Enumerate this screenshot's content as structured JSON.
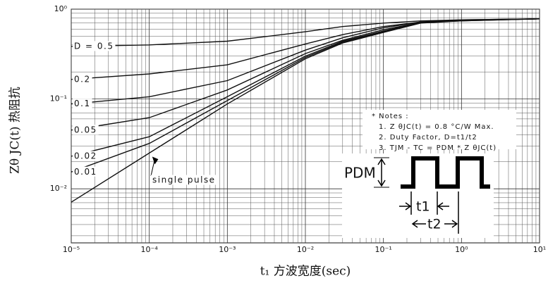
{
  "chart_data": {
    "type": "line",
    "y_label": "Zθ JC(t) 热阻抗",
    "x_label": "t₁ 方波宽度(sec)",
    "log_x": true,
    "log_y": true,
    "grid": true,
    "x": [
      1e-05,
      0.0001,
      0.001,
      0.01,
      0.03,
      0.1,
      0.3,
      1,
      10
    ],
    "xlim": [
      1e-05,
      10
    ],
    "xticks": [
      {
        "value": 1e-05,
        "label": "10⁻⁵"
      },
      {
        "value": 0.0001,
        "label": "10⁻⁴"
      },
      {
        "value": 0.001,
        "label": "10⁻³"
      },
      {
        "value": 0.01,
        "label": "10⁻²"
      },
      {
        "value": 0.1,
        "label": "10⁻¹"
      },
      {
        "value": 1,
        "label": "10⁰"
      },
      {
        "value": 10,
        "label": "10¹"
      }
    ],
    "ylim": [
      0.0025,
      1
    ],
    "yticks": [
      {
        "value": 0.01,
        "label": "10⁻²"
      },
      {
        "value": 0.1,
        "label": "10⁻¹"
      },
      {
        "value": 1,
        "label": "10⁰"
      }
    ],
    "series": [
      {
        "name": "D = 0.5",
        "color": "#111111",
        "values": [
          0.385,
          0.4,
          0.44,
          0.56,
          0.64,
          0.7,
          0.74,
          0.76,
          0.78
        ]
      },
      {
        "name": "0.2",
        "color": "#111111",
        "values": [
          0.165,
          0.19,
          0.24,
          0.41,
          0.52,
          0.64,
          0.72,
          0.76,
          0.78
        ]
      },
      {
        "name": "0.1",
        "color": "#111111",
        "values": [
          0.088,
          0.106,
          0.16,
          0.35,
          0.48,
          0.62,
          0.72,
          0.75,
          0.78
        ]
      },
      {
        "name": "0.05",
        "color": "#111111",
        "values": [
          0.045,
          0.062,
          0.126,
          0.32,
          0.45,
          0.59,
          0.71,
          0.75,
          0.78
        ]
      },
      {
        "name": "0.02",
        "color": "#111111",
        "values": [
          0.023,
          0.038,
          0.106,
          0.3,
          0.44,
          0.57,
          0.71,
          0.75,
          0.78
        ]
      },
      {
        "name": "0.01",
        "color": "#111111",
        "values": [
          0.0154,
          0.032,
          0.096,
          0.29,
          0.43,
          0.56,
          0.71,
          0.74,
          0.78
        ]
      },
      {
        "name": "single pulse",
        "color": "#111111",
        "values": [
          0.0071,
          0.025,
          0.088,
          0.28,
          0.42,
          0.55,
          0.7,
          0.74,
          0.78
        ]
      }
    ],
    "notes": [
      "* Notes :",
      "1. Z θJC(t) = 0.8 °C/W Max.",
      "2. Duty Factor, D=t1/t2",
      "3. TJM - TC = PDM * Z θJC(t)"
    ],
    "pulse_labels": {
      "power": "PDM",
      "width": "t1",
      "period": "t2"
    }
  }
}
